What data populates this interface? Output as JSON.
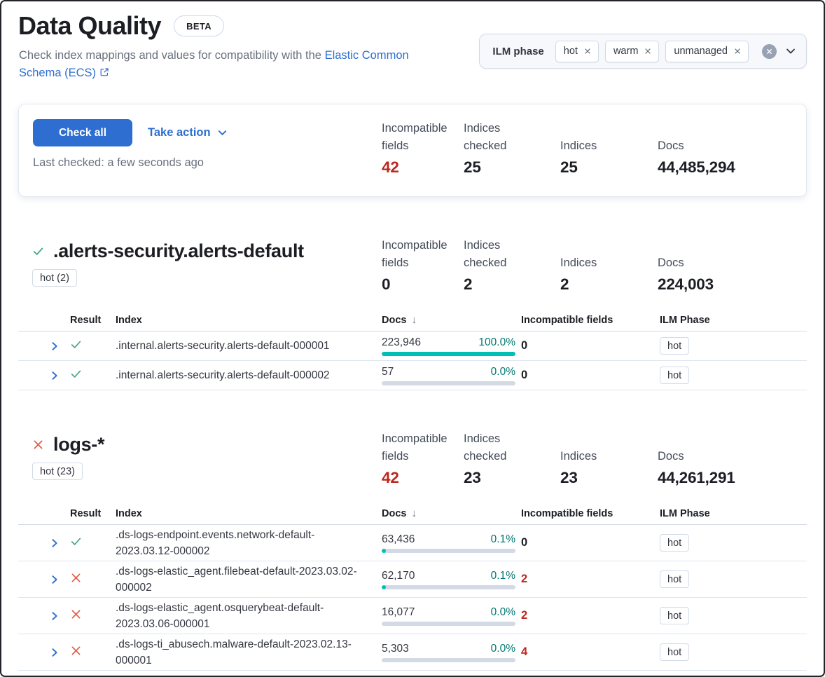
{
  "colors": {
    "accent": "#2e6ed0",
    "danger": "#bd271e",
    "failIcon": "#e0604e",
    "passIcon": "#49a58b",
    "teal": "#00bfb3",
    "tealText": "#007871",
    "dark": "#1c1e24",
    "mid": "#343741",
    "gray": "#69707d",
    "statLabel": "#454c59",
    "border": "#d3dae6",
    "rowBorder": "#dfe5f0",
    "track": "#d3dae6",
    "clear": "#98a2b3",
    "filterBg": "#f6f8fc",
    "cardBorder": "#e3e8f2",
    "frame": "#22252a"
  },
  "page": {
    "title": "Data Quality",
    "beta_badge": "BETA",
    "subtitle_prefix": "Check index mappings and values for compatibility with the",
    "subtitle_link": "Elastic Common Schema (ECS)"
  },
  "filter": {
    "label": "ILM phase",
    "tags": [
      "hot",
      "warm",
      "unmanaged"
    ]
  },
  "summary": {
    "check_all_label": "Check all",
    "take_action_label": "Take action",
    "last_checked": "Last checked: a few seconds ago",
    "stats": [
      {
        "label": "Incompatible fields",
        "value": "42",
        "danger": true
      },
      {
        "label": "Indices checked",
        "value": "25",
        "danger": false
      },
      {
        "label": "Indices",
        "value": "25",
        "danger": false
      },
      {
        "label": "Docs",
        "value": "44,485,294",
        "danger": false
      }
    ]
  },
  "table_columns": {
    "result": "Result",
    "index": "Index",
    "docs": "Docs",
    "incompatible": "Incompatible fields",
    "ilm": "ILM Phase"
  },
  "icons": {
    "sort_desc": "↓"
  },
  "sections": [
    {
      "title": ".alerts-security.alerts-default",
      "result": "pass",
      "badge": "hot (2)",
      "stats": [
        {
          "label": "Incompatible fields",
          "value": "0",
          "danger": false
        },
        {
          "label": "Indices checked",
          "value": "2",
          "danger": false
        },
        {
          "label": "Indices",
          "value": "2",
          "danger": false
        },
        {
          "label": "Docs",
          "value": "224,003",
          "danger": false
        }
      ],
      "table": {
        "rows": [
          {
            "result": "pass",
            "index": ".internal.alerts-security.alerts-default-000001",
            "docs": "223,946",
            "pct": "100.0%",
            "pct_num": 100,
            "incompatible": "0",
            "incompatible_danger": false,
            "ilm": "hot"
          },
          {
            "result": "pass",
            "index": ".internal.alerts-security.alerts-default-000002",
            "docs": "57",
            "pct": "0.0%",
            "pct_num": 0,
            "incompatible": "0",
            "incompatible_danger": false,
            "ilm": "hot"
          }
        ]
      }
    },
    {
      "title": "logs-*",
      "result": "fail",
      "badge": "hot (23)",
      "stats": [
        {
          "label": "Incompatible fields",
          "value": "42",
          "danger": true
        },
        {
          "label": "Indices checked",
          "value": "23",
          "danger": false
        },
        {
          "label": "Indices",
          "value": "23",
          "danger": false
        },
        {
          "label": "Docs",
          "value": "44,261,291",
          "danger": false
        }
      ],
      "table": {
        "rows": [
          {
            "result": "pass",
            "index": ".ds-logs-endpoint.events.network-default-2023.03.12-000002",
            "docs": "63,436",
            "pct": "0.1%",
            "pct_num": 0.1,
            "incompatible": "0",
            "incompatible_danger": false,
            "ilm": "hot"
          },
          {
            "result": "fail",
            "index": ".ds-logs-elastic_agent.filebeat-default-2023.03.02-000002",
            "docs": "62,170",
            "pct": "0.1%",
            "pct_num": 0.1,
            "incompatible": "2",
            "incompatible_danger": true,
            "ilm": "hot"
          },
          {
            "result": "fail",
            "index": ".ds-logs-elastic_agent.osquerybeat-default-2023.03.06-000001",
            "docs": "16,077",
            "pct": "0.0%",
            "pct_num": 0,
            "incompatible": "2",
            "incompatible_danger": true,
            "ilm": "hot"
          },
          {
            "result": "fail",
            "index": ".ds-logs-ti_abusech.malware-default-2023.02.13-000001",
            "docs": "5,303",
            "pct": "0.0%",
            "pct_num": 0,
            "incompatible": "4",
            "incompatible_danger": true,
            "ilm": "hot"
          }
        ]
      }
    }
  ]
}
